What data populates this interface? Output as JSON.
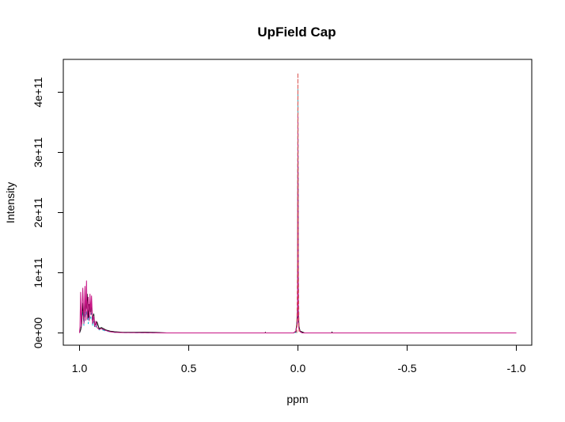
{
  "chart_data": {
    "type": "line",
    "title": "UpField Cap",
    "xlabel": "ppm",
    "ylabel": "Intensity",
    "xlim": [
      1.0,
      -1.0
    ],
    "ylim": [
      0,
      430000000000.0
    ],
    "x_reversed": true,
    "x_ticks": [
      {
        "value": 1.0,
        "label": "1.0"
      },
      {
        "value": 0.5,
        "label": "0.5"
      },
      {
        "value": 0.0,
        "label": "0.0"
      },
      {
        "value": -0.5,
        "label": "-0.5"
      },
      {
        "value": -1.0,
        "label": "-1.0"
      }
    ],
    "y_ticks": [
      {
        "value": 0,
        "label": "0e+00"
      },
      {
        "value": 100000000000.0,
        "label": "1e+11"
      },
      {
        "value": 200000000000.0,
        "label": "2e+11"
      },
      {
        "value": 300000000000.0,
        "label": "3e+11"
      },
      {
        "value": 400000000000.0,
        "label": "4e+11"
      }
    ],
    "series": [
      {
        "color": "#00bcd4",
        "dashed": true,
        "points": [
          [
            1.0,
            0
          ],
          [
            0.995,
            6000000000.0
          ],
          [
            0.99,
            18000000000.0
          ],
          [
            0.985,
            40000000000.0
          ],
          [
            0.98,
            12000000000.0
          ],
          [
            0.975,
            35000000000.0
          ],
          [
            0.97,
            28000000000.0
          ],
          [
            0.965,
            42000000000.0
          ],
          [
            0.96,
            15000000000.0
          ],
          [
            0.955,
            30000000000.0
          ],
          [
            0.95,
            25000000000.0
          ],
          [
            0.945,
            33000000000.0
          ],
          [
            0.94,
            12000000000.0
          ],
          [
            0.935,
            20000000000.0
          ],
          [
            0.93,
            8000000000.0
          ],
          [
            0.92,
            13000000000.0
          ],
          [
            0.91,
            5000000000.0
          ],
          [
            0.9,
            6000000000.0
          ],
          [
            0.88,
            3000000000.0
          ],
          [
            0.86,
            2000000000.0
          ],
          [
            0.84,
            1000000000.0
          ],
          [
            0.8,
            500000000.0
          ],
          [
            0.7,
            300000000.0
          ],
          [
            0.6,
            0
          ],
          [
            0.01,
            0
          ],
          [
            0.003,
            15000000000.0
          ],
          [
            0.0,
            405000000000.0
          ],
          [
            -0.003,
            12000000000.0
          ],
          [
            -0.01,
            2000000000.0
          ],
          [
            -0.02,
            0
          ],
          [
            -1.0,
            0
          ]
        ]
      },
      {
        "color": "#000000",
        "dashed": false,
        "points": [
          [
            1.0,
            0
          ],
          [
            0.995,
            5000000000.0
          ],
          [
            0.99,
            15000000000.0
          ],
          [
            0.985,
            50000000000.0
          ],
          [
            0.98,
            18000000000.0
          ],
          [
            0.975,
            55000000000.0
          ],
          [
            0.97,
            40000000000.0
          ],
          [
            0.965,
            65000000000.0
          ],
          [
            0.96,
            25000000000.0
          ],
          [
            0.955,
            48000000000.0
          ],
          [
            0.95,
            35000000000.0
          ],
          [
            0.945,
            50000000000.0
          ],
          [
            0.94,
            16000000000.0
          ],
          [
            0.935,
            32000000000.0
          ],
          [
            0.93,
            12000000000.0
          ],
          [
            0.92,
            18000000000.0
          ],
          [
            0.91,
            7000000000.0
          ],
          [
            0.9,
            9000000000.0
          ],
          [
            0.88,
            5000000000.0
          ],
          [
            0.86,
            3000000000.0
          ],
          [
            0.84,
            2000000000.0
          ],
          [
            0.8,
            1000000000.0
          ],
          [
            0.75,
            1000000000.0
          ],
          [
            0.7,
            1200000000.0
          ],
          [
            0.65,
            800000000.0
          ],
          [
            0.6,
            0
          ],
          [
            0.15,
            0
          ],
          [
            0.149,
            1500000000.0
          ],
          [
            0.148,
            0
          ],
          [
            0.02,
            0
          ],
          [
            0.01,
            2000000000.0
          ],
          [
            0.005,
            15000000000.0
          ],
          [
            0.002,
            40000000000.0
          ],
          [
            0.0,
            300000000000.0
          ],
          [
            -0.002,
            35000000000.0
          ],
          [
            -0.005,
            10000000000.0
          ],
          [
            -0.01,
            3000000000.0
          ],
          [
            -0.02,
            1500000000.0
          ],
          [
            -0.03,
            0
          ],
          [
            -0.155,
            0
          ],
          [
            -0.156,
            2000000000.0
          ],
          [
            -0.157,
            0
          ],
          [
            -1.0,
            0
          ]
        ]
      },
      {
        "color": "#c71585",
        "dashed": false,
        "points": [
          [
            1.0,
            0
          ],
          [
            0.998,
            10000000000.0
          ],
          [
            0.995,
            68000000000.0
          ],
          [
            0.992,
            10000000000.0
          ],
          [
            0.99,
            25000000000.0
          ],
          [
            0.985,
            75000000000.0
          ],
          [
            0.98,
            15000000000.0
          ],
          [
            0.975,
            78000000000.0
          ],
          [
            0.972,
            20000000000.0
          ],
          [
            0.968,
            87000000000.0
          ],
          [
            0.965,
            22000000000.0
          ],
          [
            0.96,
            60000000000.0
          ],
          [
            0.955,
            20000000000.0
          ],
          [
            0.952,
            65000000000.0
          ],
          [
            0.948,
            30000000000.0
          ],
          [
            0.945,
            62000000000.0
          ],
          [
            0.94,
            15000000000.0
          ],
          [
            0.935,
            28000000000.0
          ],
          [
            0.93,
            10000000000.0
          ],
          [
            0.925,
            20000000000.0
          ],
          [
            0.92,
            9000000000.0
          ],
          [
            0.91,
            6000000000.0
          ],
          [
            0.9,
            7000000000.0
          ],
          [
            0.88,
            4000000000.0
          ],
          [
            0.86,
            2000000000.0
          ],
          [
            0.84,
            1000000000.0
          ],
          [
            0.8,
            500000000.0
          ],
          [
            0.7,
            300000000.0
          ],
          [
            0.6,
            0
          ],
          [
            0.02,
            0
          ],
          [
            0.01,
            3000000000.0
          ],
          [
            0.004,
            12000000000.0
          ],
          [
            0.002,
            25000000000.0
          ],
          [
            0.0,
            360000000000.0
          ],
          [
            -0.002,
            20000000000.0
          ],
          [
            -0.004,
            8000000000.0
          ],
          [
            -0.01,
            2000000000.0
          ],
          [
            -0.02,
            0
          ],
          [
            -1.0,
            0
          ]
        ]
      },
      {
        "color": "#d9534f",
        "dashed": true,
        "points": [
          [
            0.005,
            0
          ],
          [
            0.001,
            150000000000.0
          ],
          [
            0.0,
            432000000000.0
          ],
          [
            -0.001,
            150000000000.0
          ],
          [
            -0.005,
            0
          ]
        ]
      }
    ]
  }
}
